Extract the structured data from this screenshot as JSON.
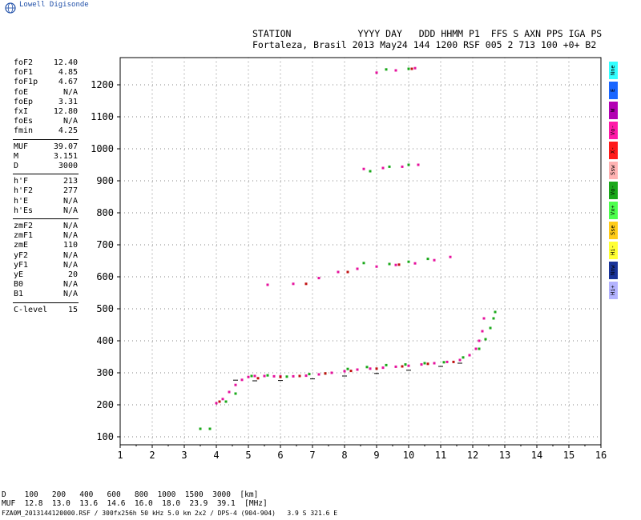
{
  "brand": "Lowell Digisonde",
  "header": {
    "line1": "STATION            YYYY DAY   DDD HHMM P1  FFS S AXN PPS IGA PS",
    "line2": "Fortaleza, Brasil 2013 May24 144 1200 RSF 005 2 713 100 +0+ B2"
  },
  "params": [
    {
      "group": 1,
      "items": [
        {
          "name": "foF2",
          "value": "12.40"
        },
        {
          "name": "foF1",
          "value": "4.85"
        },
        {
          "name": "foF1p",
          "value": "4.67"
        },
        {
          "name": "foE",
          "value": "N/A"
        },
        {
          "name": "foEp",
          "value": "3.31"
        },
        {
          "name": "fxI",
          "value": "12.80"
        },
        {
          "name": "foEs",
          "value": "N/A"
        },
        {
          "name": "fmin",
          "value": "4.25"
        }
      ]
    },
    {
      "group": 2,
      "items": [
        {
          "name": "MUF",
          "value": "39.07"
        },
        {
          "name": "M",
          "value": "3.151"
        },
        {
          "name": "D",
          "value": "3000"
        }
      ]
    },
    {
      "group": 3,
      "items": [
        {
          "name": "h'F",
          "value": "213"
        },
        {
          "name": "h'F2",
          "value": "277"
        },
        {
          "name": "h'E",
          "value": "N/A"
        },
        {
          "name": "h'Es",
          "value": "N/A"
        }
      ]
    },
    {
      "group": 4,
      "items": [
        {
          "name": "zmF2",
          "value": "N/A"
        },
        {
          "name": "zmF1",
          "value": "N/A"
        },
        {
          "name": "zmE",
          "value": "110"
        },
        {
          "name": "yF2",
          "value": "N/A"
        },
        {
          "name": "yF1",
          "value": "N/A"
        },
        {
          "name": "yE",
          "value": "20"
        },
        {
          "name": "B0",
          "value": "N/A"
        },
        {
          "name": "B1",
          "value": "N/A"
        }
      ]
    },
    {
      "group": 5,
      "items": [
        {
          "name": "C-level",
          "value": "15"
        }
      ]
    }
  ],
  "legend": [
    {
      "label": "Nne",
      "color": "#33ffff"
    },
    {
      "label": "E",
      "color": "#1a66ff"
    },
    {
      "label": "W",
      "color": "#b300b3"
    },
    {
      "label": "Vo-",
      "color": "#ff1aa8"
    },
    {
      "label": "X-",
      "color": "#ff1a1a"
    },
    {
      "label": "Ssw",
      "color": "#ffb3b3"
    },
    {
      "label": "Vo-",
      "color": "#1aa81a"
    },
    {
      "label": "Vx+",
      "color": "#4dff4d"
    },
    {
      "label": "Sse",
      "color": "#ffcc1a"
    },
    {
      "label": "Hi-",
      "color": "#ffff33"
    },
    {
      "label": "Nnw",
      "color": "#1a3399"
    },
    {
      "label": "Hi+",
      "color": "#b3b3ff"
    }
  ],
  "bottom": {
    "d_row": "D    100   200   400   600   800  1000  1500  3000  [km]",
    "muf_row": "MUF  12.8  13.0  13.6  14.6  16.0  18.0  23.9  39.1  [MHz]",
    "footer": "FZA0M_2013144120000.RSF / 300fx256h 50 kHz 5.0 km 2x2 / DPS-4 (904-904)   3.9 S 321.6 E"
  },
  "chart_data": {
    "type": "scatter",
    "title": "",
    "xlabel": "",
    "ylabel": "",
    "xlim": [
      1,
      16
    ],
    "ylim": [
      75,
      1285
    ],
    "x_ticks": [
      "1",
      "2",
      "3",
      "4",
      "5",
      "6",
      "7",
      "8",
      "9",
      "10",
      "11",
      "12",
      "13",
      "14",
      "15",
      "16"
    ],
    "y_ticks": [
      "100",
      "200",
      "300",
      "400",
      "500",
      "600",
      "700",
      "800",
      "900",
      "1000",
      "1100",
      "1200"
    ],
    "grid": true,
    "series": [
      {
        "color": "#e6119d",
        "points": [
          [
            4.0,
            205
          ],
          [
            4.2,
            218
          ],
          [
            4.4,
            240
          ],
          [
            4.6,
            262
          ],
          [
            4.8,
            278
          ],
          [
            5.0,
            287
          ],
          [
            5.2,
            290
          ],
          [
            5.5,
            290
          ],
          [
            5.8,
            289
          ],
          [
            6.0,
            289
          ],
          [
            6.4,
            289
          ],
          [
            6.8,
            291
          ],
          [
            7.2,
            295
          ],
          [
            7.6,
            300
          ],
          [
            8.0,
            305
          ],
          [
            8.4,
            310
          ],
          [
            8.8,
            313
          ],
          [
            9.2,
            316
          ],
          [
            9.6,
            319
          ],
          [
            10.0,
            322
          ],
          [
            10.4,
            326
          ],
          [
            10.8,
            330
          ],
          [
            11.2,
            334
          ],
          [
            11.6,
            340
          ],
          [
            11.9,
            355
          ],
          [
            12.1,
            375
          ],
          [
            12.2,
            400
          ],
          [
            12.3,
            430
          ],
          [
            12.35,
            470
          ],
          [
            5.6,
            575
          ],
          [
            6.4,
            578
          ],
          [
            7.2,
            596
          ],
          [
            7.8,
            615
          ],
          [
            8.4,
            625
          ],
          [
            9.0,
            632
          ],
          [
            9.6,
            637
          ],
          [
            10.2,
            642
          ],
          [
            10.8,
            652
          ],
          [
            11.3,
            662
          ],
          [
            8.6,
            937
          ],
          [
            9.2,
            940
          ],
          [
            9.8,
            944
          ],
          [
            10.3,
            950
          ],
          [
            9.0,
            1238
          ],
          [
            9.6,
            1245
          ],
          [
            10.2,
            1252
          ]
        ]
      },
      {
        "color": "#1aa81a",
        "points": [
          [
            3.5,
            125
          ],
          [
            3.8,
            125
          ],
          [
            4.3,
            210
          ],
          [
            4.6,
            235
          ],
          [
            5.1,
            290
          ],
          [
            5.6,
            292
          ],
          [
            6.2,
            288
          ],
          [
            6.9,
            296
          ],
          [
            7.4,
            298
          ],
          [
            8.1,
            312
          ],
          [
            8.7,
            318
          ],
          [
            9.3,
            324
          ],
          [
            9.9,
            326
          ],
          [
            10.5,
            330
          ],
          [
            11.1,
            333
          ],
          [
            11.7,
            348
          ],
          [
            12.2,
            375
          ],
          [
            12.4,
            405
          ],
          [
            12.55,
            440
          ],
          [
            12.65,
            470
          ],
          [
            12.7,
            490
          ],
          [
            8.6,
            643
          ],
          [
            9.4,
            640
          ],
          [
            10.0,
            647
          ],
          [
            10.6,
            656
          ],
          [
            8.8,
            930
          ],
          [
            9.4,
            944
          ],
          [
            10.0,
            950
          ],
          [
            9.3,
            1248
          ],
          [
            10.0,
            1250
          ]
        ]
      },
      {
        "color": "#c01010",
        "points": [
          [
            4.1,
            210
          ],
          [
            5.3,
            283
          ],
          [
            6.0,
            287
          ],
          [
            6.6,
            290
          ],
          [
            7.4,
            298
          ],
          [
            8.2,
            306
          ],
          [
            9.0,
            313
          ],
          [
            9.8,
            320
          ],
          [
            10.6,
            328
          ],
          [
            11.4,
            334
          ],
          [
            6.8,
            578
          ],
          [
            8.1,
            615
          ],
          [
            9.7,
            638
          ],
          [
            10.1,
            1250
          ]
        ]
      },
      {
        "color": "#000000",
        "points": [
          [
            4.6,
            277
          ],
          [
            5.2,
            275
          ],
          [
            6.0,
            276
          ],
          [
            7.0,
            281
          ],
          [
            8.0,
            290
          ],
          [
            9.0,
            298
          ],
          [
            10.0,
            308
          ],
          [
            11.0,
            320
          ],
          [
            11.6,
            330
          ]
        ]
      }
    ]
  }
}
